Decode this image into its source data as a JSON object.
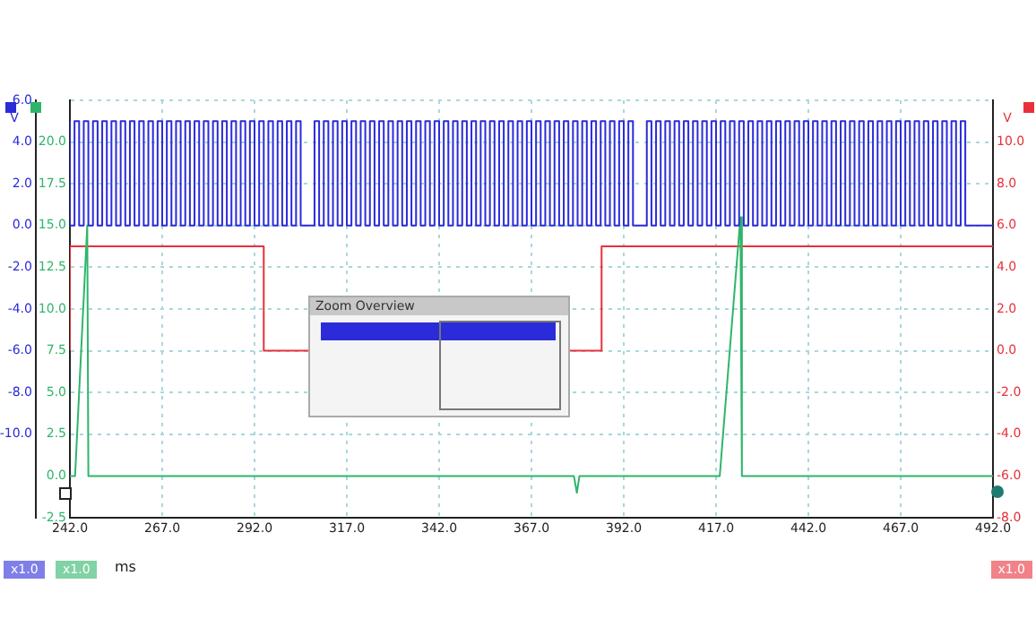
{
  "chart_data": {
    "type": "step",
    "xlabel": "ms",
    "ylabel": "V",
    "y3label": "V",
    "annotations": [
      "Zoom Overview",
      "x1.0",
      "x1.0",
      "x1.0"
    ],
    "xlim": [
      242,
      492
    ],
    "xticks": [
      {
        "value": 242,
        "label": "242.0"
      },
      {
        "value": 267,
        "label": "267.0"
      },
      {
        "value": 292,
        "label": "292.0"
      },
      {
        "value": 317,
        "label": "317.0"
      },
      {
        "value": 342,
        "label": "342.0"
      },
      {
        "value": 367,
        "label": "367.0"
      },
      {
        "value": 392,
        "label": "392.0"
      },
      {
        "value": 417,
        "label": "417.0"
      },
      {
        "value": 442,
        "label": "442.0"
      },
      {
        "value": 467,
        "label": "467.0"
      },
      {
        "value": 492,
        "label": "492.0"
      }
    ],
    "ylim": [
      -14,
      6
    ],
    "yticks": [
      {
        "value": 6,
        "label": "6.0"
      },
      {
        "value": 4,
        "label": "4.0"
      },
      {
        "value": 2,
        "label": "2.0"
      },
      {
        "value": 0,
        "label": "0.0"
      },
      {
        "value": -2,
        "label": "-2.0"
      },
      {
        "value": -4,
        "label": "-4.0"
      },
      {
        "value": -6,
        "label": "-6.0"
      },
      {
        "value": -8,
        "label": "-8.0"
      },
      {
        "value": -10,
        "label": "-10.0"
      }
    ],
    "y2lim": [
      -2.5,
      22.5
    ],
    "y2ticks": [
      -2.5,
      {
        "value": 0,
        "label": "0.0"
      },
      2.5,
      {
        "value": 5,
        "label": "5.0"
      },
      7.5,
      {
        "value": 10,
        "label": "10.0"
      },
      12.5,
      {
        "value": 15,
        "label": "15.0"
      },
      17.5,
      {
        "value": 20,
        "label": "20.0"
      }
    ],
    "y3lim": [
      -8,
      12
    ],
    "y3ticks": [
      {
        "value": -8,
        "label": "-8.0"
      },
      {
        "value": -6,
        "label": "-6.0"
      },
      {
        "value": -4,
        "label": "-4.0"
      },
      {
        "value": -2,
        "label": "-2.0"
      },
      {
        "value": 0,
        "label": "0.0"
      },
      {
        "value": 2,
        "label": "2.0"
      },
      {
        "value": 4,
        "label": "4.0"
      },
      {
        "value": 6,
        "label": "6.0"
      },
      {
        "value": 8,
        "label": "8.0"
      },
      {
        "value": 10,
        "label": "10.0"
      }
    ],
    "grid": true,
    "legend": false,
    "series": [
      {
        "color": "#2b2bd9",
        "x": [
          242,
          243.25,
          244.5,
          245.75,
          247,
          248.25,
          249.5,
          250.75,
          252,
          253.25,
          254.5,
          255.75,
          257,
          258.25,
          259.5,
          260.75,
          262,
          263.25,
          264.5,
          265.75,
          267,
          268.25,
          269.5,
          270.75,
          272,
          273.25,
          274.5,
          275.75,
          277,
          278.25,
          279.5,
          280.75,
          282,
          283.25,
          284.5,
          285.75,
          287,
          288.25,
          289.5,
          290.75,
          292,
          293.25,
          294.5,
          295.75,
          297,
          298.25,
          299.5,
          300.75,
          302,
          303.25,
          304.5,
          308.25,
          309.5,
          310.75,
          312,
          313.25,
          314.5,
          315.75,
          317,
          318.25,
          319.5,
          320.75,
          322,
          323.25,
          324.5,
          325.75,
          327,
          328.25,
          329.5,
          330.75,
          332,
          333.25,
          334.5,
          335.75,
          337,
          338.25,
          339.5,
          340.75,
          342,
          343.25,
          344.5,
          345.75,
          347,
          348.25,
          349.5,
          350.75,
          352,
          353.25,
          354.5,
          355.75,
          357,
          358.25,
          359.5,
          360.75,
          362,
          363.25,
          364.5,
          365.75,
          367,
          368.25,
          369.5,
          370.75,
          372,
          373.25,
          374.5,
          375.75,
          377,
          378.25,
          379.5,
          380.75,
          382,
          383.25,
          384.5,
          385.75,
          387,
          388.25,
          389.5,
          390.75,
          392,
          393.25,
          394.5,
          398.25,
          399.5,
          400.75,
          402,
          403.25,
          404.5,
          405.75,
          407,
          408.25,
          409.5,
          410.75,
          412,
          413.25,
          414.5,
          415.75,
          417,
          418.25,
          419.5,
          420.75,
          422,
          423.25,
          424.5,
          425.75,
          427,
          428.25,
          429.5,
          430.75,
          432,
          433.25,
          434.5,
          435.75,
          437,
          438.25,
          439.5,
          440.75,
          442,
          443.25,
          444.5,
          445.75,
          447,
          448.25,
          449.5,
          450.75,
          452,
          453.25,
          454.5,
          455.75,
          457,
          458.25,
          459.5,
          460.75,
          462,
          463.25,
          464.5,
          465.75,
          467,
          468.25,
          469.5,
          470.75,
          472,
          473.25,
          474.5,
          475.75,
          477,
          478.25,
          479.5,
          480.75,
          482,
          483.25,
          484.5,
          490.75,
          492
        ],
        "values": [
          5,
          0,
          5,
          0,
          5,
          0,
          5,
          0,
          5,
          0,
          5,
          0,
          5,
          0,
          5,
          0,
          5,
          0,
          5,
          0,
          5,
          0,
          5,
          0,
          5,
          0,
          5,
          0,
          5,
          0,
          5,
          0,
          5,
          0,
          5,
          0,
          5,
          0,
          5,
          0,
          5,
          0,
          5,
          0,
          5,
          0,
          5,
          0,
          5,
          0,
          5,
          0,
          5,
          0,
          5,
          0,
          5,
          0,
          5,
          0,
          5,
          0,
          5,
          0,
          5,
          0,
          5,
          0,
          5,
          0,
          5,
          0,
          5,
          0,
          5,
          0,
          5,
          0,
          5,
          0,
          5,
          0,
          5,
          0,
          5,
          0,
          5,
          0,
          5,
          0,
          5,
          0,
          5,
          0,
          5,
          0,
          5,
          0,
          5,
          0,
          5,
          0,
          5,
          0,
          5,
          0,
          5,
          0,
          5,
          0,
          5,
          0,
          5,
          0,
          5,
          0,
          5,
          0,
          5,
          0,
          5,
          0,
          5,
          0,
          5,
          0,
          5,
          0,
          5,
          0,
          5,
          0,
          5,
          0,
          5,
          0,
          5,
          0,
          5,
          0,
          5,
          0,
          5,
          0,
          5,
          0,
          5,
          0,
          5,
          0,
          5,
          0,
          5,
          0,
          5,
          0,
          5,
          0,
          5,
          0,
          5,
          0,
          5,
          0,
          5,
          0,
          5,
          0,
          5,
          0,
          5,
          0,
          5,
          0,
          5,
          0,
          5,
          0,
          5,
          0,
          5,
          0,
          5,
          0,
          5,
          0,
          5,
          0,
          5,
          0,
          5,
          0,
          0
        ]
      },
      {
        "type": "line",
        "axis": "y2",
        "color": "#2fb56a",
        "x": [
          242,
          243.4,
          246.7,
          247,
          378.5,
          379.3,
          380,
          418,
          423.6,
          424,
          492
        ],
        "values": [
          0,
          0,
          15,
          0,
          0,
          -1,
          0,
          0,
          15.5,
          0,
          0
        ]
      },
      {
        "type": "step",
        "axis": "y3",
        "color": "#e8303a",
        "x": [
          242,
          294.5,
          386,
          471.2,
          492
        ],
        "values": [
          0,
          5,
          0,
          5,
          5
        ]
      }
    ]
  }
}
